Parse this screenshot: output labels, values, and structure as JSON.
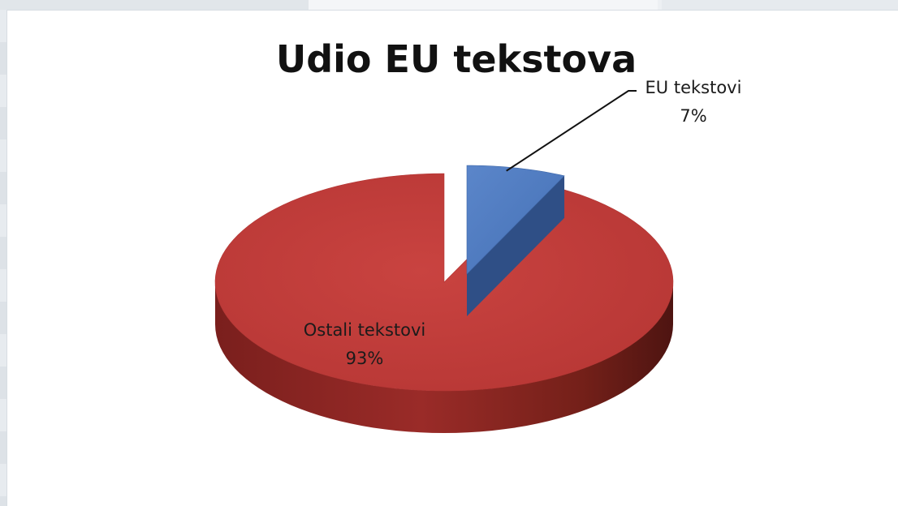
{
  "chart_data": {
    "type": "pie",
    "title": "Udio EU tekstova",
    "three_d": true,
    "exploded_slice": "EU tekstovi",
    "legend": "none",
    "slices": [
      {
        "name": "EU tekstovi",
        "label_name": "EU tekstovi",
        "label_value": "7%",
        "value": 7,
        "color": "#4f7cc2",
        "side_color": "#2f4f86"
      },
      {
        "name": "Ostali tekstovi",
        "label_name": "Ostali tekstovi",
        "label_value": "93%",
        "value": 93,
        "color": "#bf3b3b",
        "side_color": "#7d2220"
      }
    ]
  }
}
